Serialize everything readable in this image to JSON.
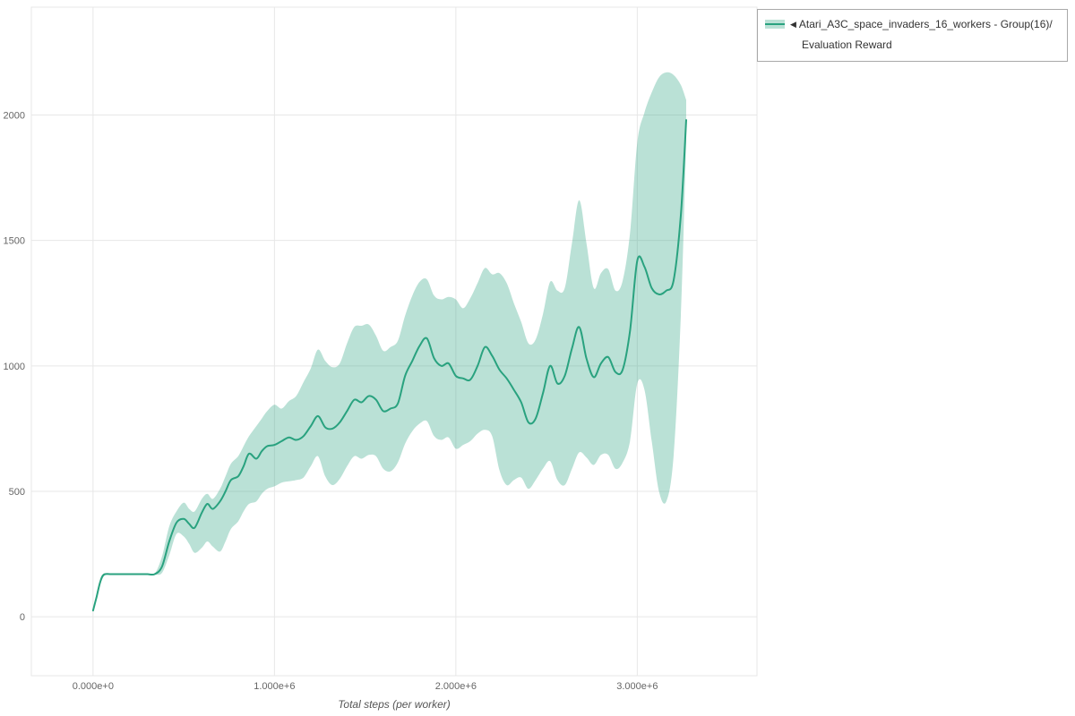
{
  "legend": {
    "collapse_icon": "◀",
    "series_label_line1": "Atari_A3C_space_invaders_16_workers - Group(16)/",
    "series_label_line2": "Evaluation Reward"
  },
  "colors": {
    "line": "#29a27f",
    "band": "rgba(41,162,127,0.32)",
    "grid": "#e7e7e7",
    "plot_border": "#e7e7e7",
    "tick_text": "#666666",
    "axis_title": "#555555",
    "legend_border": "#a9a9a9"
  },
  "chart_data": {
    "type": "line",
    "title": "",
    "xlabel": "Total steps (per worker)",
    "ylabel": "",
    "grid": true,
    "legend_position": "top-right",
    "x_tick_values": [
      0,
      1000000,
      2000000,
      3000000
    ],
    "x_tick_labels": [
      "0.000e+0",
      "1.000e+6",
      "2.000e+6",
      "3.000e+6"
    ],
    "y_tick_values": [
      0,
      500,
      1000,
      1500,
      2000
    ],
    "y_tick_labels": [
      "0",
      "500",
      "1000",
      "1500",
      "2000"
    ],
    "xlim": [
      -340000,
      3660000
    ],
    "ylim": [
      -235,
      2430
    ],
    "series": [
      {
        "name": "Atari_A3C_space_invaders_16_workers - Group(16)/Evaluation Reward",
        "x": [
          0,
          20000,
          40000,
          60000,
          100000,
          150000,
          200000,
          250000,
          300000,
          340000,
          380000,
          420000,
          460000,
          500000,
          530000,
          560000,
          600000,
          630000,
          660000,
          700000,
          730000,
          760000,
          800000,
          830000,
          860000,
          900000,
          930000,
          960000,
          1000000,
          1040000,
          1080000,
          1120000,
          1160000,
          1200000,
          1240000,
          1280000,
          1320000,
          1360000,
          1400000,
          1440000,
          1480000,
          1520000,
          1560000,
          1600000,
          1640000,
          1680000,
          1720000,
          1760000,
          1800000,
          1840000,
          1880000,
          1920000,
          1960000,
          2000000,
          2040000,
          2080000,
          2120000,
          2160000,
          2200000,
          2240000,
          2280000,
          2320000,
          2360000,
          2400000,
          2440000,
          2480000,
          2520000,
          2560000,
          2600000,
          2640000,
          2680000,
          2720000,
          2760000,
          2800000,
          2840000,
          2880000,
          2920000,
          2960000,
          3000000,
          3040000,
          3080000,
          3120000,
          3160000,
          3200000,
          3240000,
          3270000
        ],
        "mean": [
          25,
          80,
          140,
          168,
          170,
          170,
          170,
          170,
          170,
          170,
          200,
          300,
          375,
          390,
          370,
          355,
          415,
          450,
          430,
          460,
          500,
          545,
          560,
          600,
          650,
          630,
          660,
          680,
          685,
          700,
          715,
          705,
          720,
          760,
          800,
          755,
          750,
          775,
          820,
          865,
          855,
          880,
          865,
          820,
          830,
          850,
          960,
          1020,
          1080,
          1110,
          1030,
          1000,
          1010,
          960,
          950,
          945,
          1000,
          1075,
          1040,
          985,
          950,
          905,
          855,
          775,
          790,
          890,
          1000,
          930,
          960,
          1070,
          1155,
          1030,
          955,
          1010,
          1035,
          975,
          985,
          1140,
          1420,
          1395,
          1310,
          1285,
          1300,
          1340,
          1600,
          1980
        ],
        "lower": [
          25,
          70,
          130,
          162,
          168,
          168,
          168,
          168,
          168,
          168,
          175,
          245,
          330,
          320,
          290,
          255,
          275,
          300,
          280,
          260,
          300,
          350,
          380,
          420,
          450,
          460,
          490,
          510,
          520,
          535,
          540,
          545,
          555,
          600,
          640,
          560,
          525,
          550,
          600,
          640,
          630,
          645,
          640,
          590,
          580,
          615,
          690,
          740,
          770,
          780,
          720,
          705,
          715,
          670,
          685,
          700,
          730,
          745,
          720,
          585,
          525,
          545,
          555,
          510,
          545,
          590,
          620,
          545,
          525,
          590,
          655,
          635,
          605,
          645,
          645,
          590,
          615,
          700,
          930,
          905,
          700,
          500,
          460,
          640,
          1200,
          1900
        ],
        "upper": [
          25,
          95,
          150,
          172,
          172,
          172,
          172,
          172,
          172,
          172,
          240,
          360,
          420,
          455,
          430,
          420,
          470,
          490,
          470,
          510,
          560,
          610,
          640,
          680,
          720,
          760,
          790,
          820,
          845,
          830,
          860,
          880,
          935,
          990,
          1065,
          1020,
          995,
          1010,
          1090,
          1155,
          1160,
          1165,
          1120,
          1060,
          1075,
          1100,
          1200,
          1280,
          1335,
          1345,
          1280,
          1265,
          1275,
          1265,
          1230,
          1270,
          1330,
          1390,
          1365,
          1370,
          1330,
          1250,
          1175,
          1090,
          1105,
          1205,
          1335,
          1300,
          1310,
          1490,
          1660,
          1490,
          1310,
          1370,
          1385,
          1300,
          1340,
          1530,
          1890,
          2010,
          2090,
          2150,
          2170,
          2160,
          2120,
          2060
        ]
      }
    ]
  }
}
